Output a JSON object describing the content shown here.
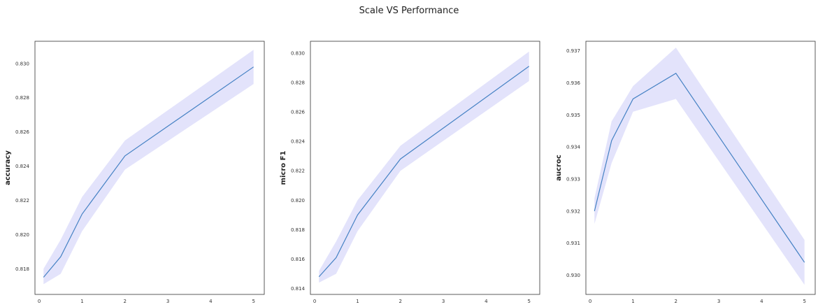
{
  "figure": {
    "title": "Scale VS Performance"
  },
  "chart_data": [
    {
      "type": "line",
      "ylabel": "accuracy",
      "x": [
        0.1,
        0.5,
        1,
        2,
        5
      ],
      "series": [
        {
          "values": [
            0.8175,
            0.8187,
            0.8212,
            0.8246,
            0.8298
          ]
        }
      ],
      "band_lower": [
        0.8171,
        0.8177,
        0.8202,
        0.8238,
        0.8288
      ],
      "band_upper": [
        0.818,
        0.8197,
        0.8222,
        0.8255,
        0.8308
      ],
      "xlim": [
        -0.1,
        5.25
      ],
      "ylim": [
        0.8165,
        0.8313
      ],
      "xticks": [
        "0",
        "1",
        "2",
        "3",
        "4",
        "5"
      ],
      "yticks": [
        "0.818",
        "0.820",
        "0.822",
        "0.824",
        "0.826",
        "0.828",
        "0.830"
      ],
      "grid": false
    },
    {
      "type": "line",
      "ylabel": "micro F1",
      "x": [
        0.1,
        0.5,
        1,
        2,
        5
      ],
      "series": [
        {
          "values": [
            0.8148,
            0.8161,
            0.819,
            0.8228,
            0.8291
          ]
        }
      ],
      "band_lower": [
        0.8144,
        0.815,
        0.8179,
        0.822,
        0.8281
      ],
      "band_upper": [
        0.8152,
        0.8172,
        0.82,
        0.8237,
        0.8301
      ],
      "xlim": [
        -0.1,
        5.25
      ],
      "ylim": [
        0.8136,
        0.8308
      ],
      "xticks": [
        "0",
        "1",
        "2",
        "3",
        "4",
        "5"
      ],
      "yticks": [
        "0.814",
        "0.816",
        "0.818",
        "0.820",
        "0.822",
        "0.824",
        "0.826",
        "0.828",
        "0.830"
      ],
      "grid": false
    },
    {
      "type": "line",
      "ylabel": "aucroc",
      "x": [
        0.1,
        0.5,
        1,
        2,
        5
      ],
      "series": [
        {
          "values": [
            0.932,
            0.9342,
            0.9355,
            0.9363,
            0.9304
          ]
        }
      ],
      "band_lower": [
        0.9316,
        0.9335,
        0.9351,
        0.9355,
        0.9297
      ],
      "band_upper": [
        0.9324,
        0.9348,
        0.9359,
        0.9371,
        0.9311
      ],
      "xlim": [
        -0.1,
        5.25
      ],
      "ylim": [
        0.9294,
        0.9373
      ],
      "xticks": [
        "0",
        "1",
        "2",
        "3",
        "4",
        "5"
      ],
      "yticks": [
        "0.930",
        "0.931",
        "0.932",
        "0.933",
        "0.934",
        "0.935",
        "0.936",
        "0.937"
      ],
      "grid": false
    }
  ],
  "colors": {
    "line": "#4682c4",
    "band": "#e3e3fb",
    "frame": "#333333"
  }
}
